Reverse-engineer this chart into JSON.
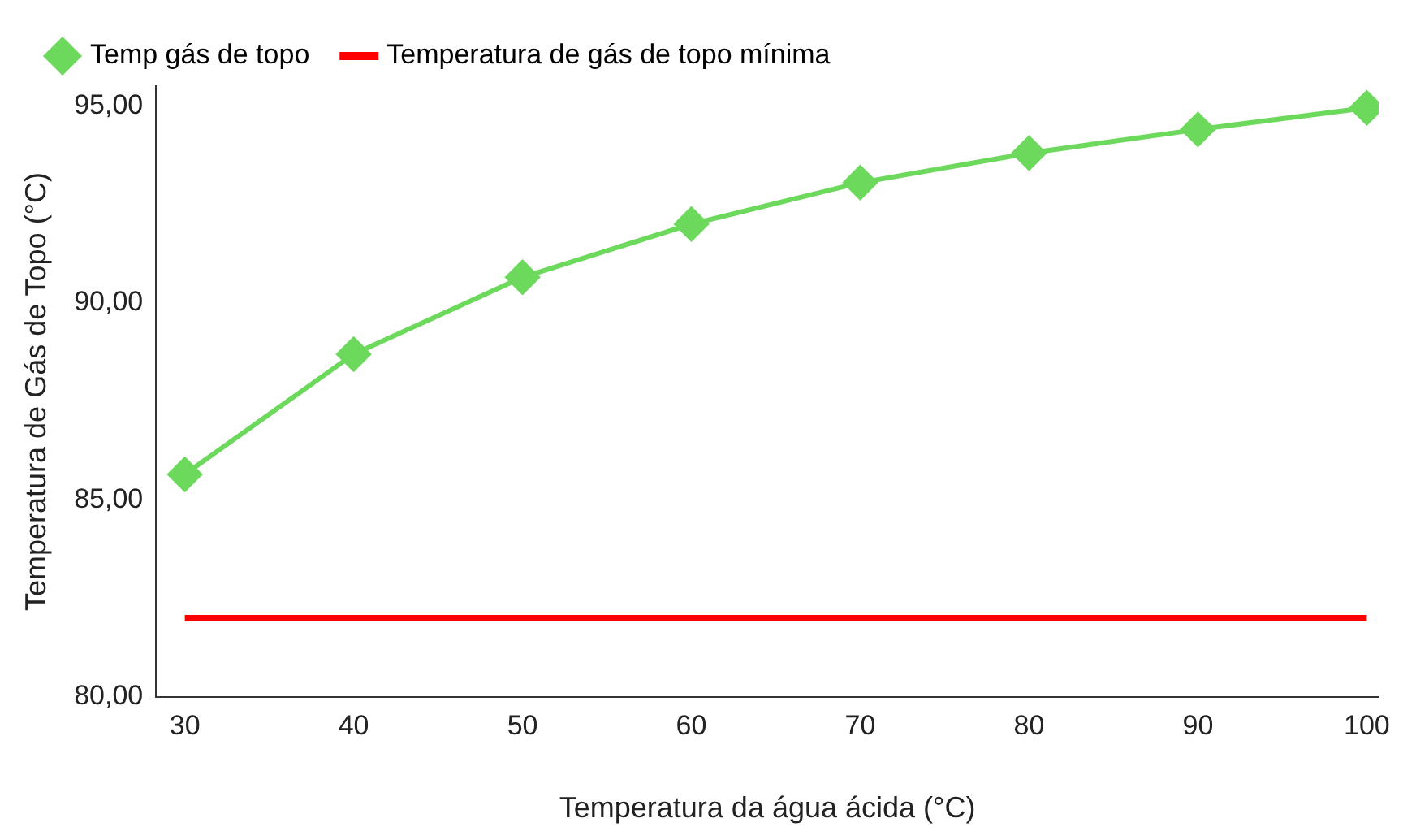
{
  "chart_data": {
    "type": "line",
    "xlabel": "Temperatura da água ácida (°C)",
    "ylabel": "Temperatura de Gás de Topo (°C)",
    "x": [
      30,
      40,
      50,
      60,
      70,
      80,
      90,
      100
    ],
    "series": [
      {
        "name": "Temp gás de topo",
        "color": "#6cd95c",
        "marker": "diamond",
        "values": [
          85.65,
          88.7,
          90.65,
          92.0,
          93.05,
          93.8,
          94.4,
          94.95
        ]
      },
      {
        "name": "Temperatura de gás de topo mínima",
        "color": "#ff0000",
        "marker": "none",
        "values": [
          82,
          82,
          82,
          82,
          82,
          82,
          82,
          82
        ]
      }
    ],
    "xlim": [
      28.3,
      100.7
    ],
    "xticks": [
      30,
      40,
      50,
      60,
      70,
      80,
      90,
      100
    ],
    "ylim": [
      80,
      95.5
    ],
    "yticks": [
      {
        "value": 80,
        "label": "80,00"
      },
      {
        "value": 85,
        "label": "85,00"
      },
      {
        "value": 90,
        "label": "90,00"
      },
      {
        "value": 95,
        "label": "95,00"
      }
    ],
    "grid": false,
    "legend": "top left"
  }
}
